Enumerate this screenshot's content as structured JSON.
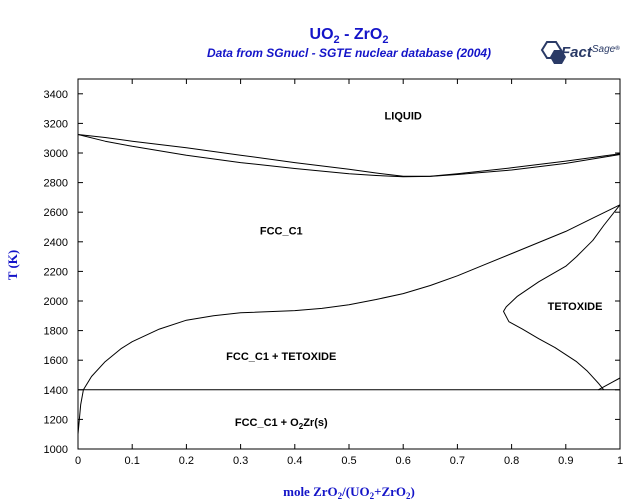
{
  "title": {
    "main": "UO",
    "main_sub1": "2",
    "main_mid": " - ZrO",
    "main_sub2": "2",
    "subtitle": "Data from SGnucl - SGTE nuclear database (2004)"
  },
  "logo": {
    "part1": "Fact",
    "part2": "Sage",
    "mark": "®"
  },
  "axes": {
    "ylabel": "T (K)",
    "xlabel_pre": "mole ZrO",
    "xlabel_s1": "2",
    "xlabel_mid": "/(UO",
    "xlabel_s2": "2",
    "xlabel_post": "+ZrO",
    "xlabel_s3": "2",
    "xlabel_end": ")"
  },
  "colors": {
    "accent": "#1414c8",
    "line": "#000000",
    "logo": "#2a3a66"
  },
  "chart_data": {
    "type": "line",
    "title": "UO2 - ZrO2",
    "subtitle": "Data from SGnucl - SGTE nuclear database (2004)",
    "xlabel": "mole ZrO2/(UO2+ZrO2)",
    "ylabel": "T (K)",
    "xlim": [
      0,
      1
    ],
    "ylim": [
      1000,
      3500
    ],
    "x_ticks": [
      0,
      0.1,
      0.2,
      0.3,
      0.4,
      0.5,
      0.6,
      0.7,
      0.8,
      0.9,
      1
    ],
    "x_tick_labels": [
      "0",
      "0.1",
      "0.2",
      "0.3",
      "0.4",
      "0.5",
      "0.6",
      "0.7",
      "0.8",
      "0.9",
      "1"
    ],
    "y_ticks": [
      1000,
      1200,
      1400,
      1600,
      1800,
      2000,
      2200,
      2400,
      2600,
      2800,
      3000,
      3200,
      3400
    ],
    "y_tick_labels": [
      "1000",
      "1200",
      "1400",
      "1600",
      "1800",
      "2000",
      "2200",
      "2400",
      "2600",
      "2800",
      "3000",
      "3200",
      "3400"
    ],
    "grid": false,
    "regions": [
      {
        "label": "LIQUID",
        "x": 0.6,
        "y": 3255
      },
      {
        "label": "FCC_C1",
        "x": 0.375,
        "y": 2475
      },
      {
        "label": "TETOXIDE",
        "x": 0.917,
        "y": 1965
      },
      {
        "label": "FCC_C1 + TETOXIDE",
        "x": 0.375,
        "y": 1630
      },
      {
        "label": "FCC_C1 + O",
        "sub": "2",
        "post": "Zr(s)",
        "x": 0.375,
        "y": 1183
      }
    ],
    "series": [
      {
        "values": [
          [
            0,
            3125
          ],
          [
            0.05,
            3105
          ],
          [
            0.1,
            3080
          ],
          [
            0.2,
            3035
          ],
          [
            0.3,
            2985
          ],
          [
            0.4,
            2935
          ],
          [
            0.5,
            2890
          ],
          [
            0.55,
            2865
          ],
          [
            0.6,
            2843
          ],
          [
            0.65,
            2843
          ],
          [
            0.7,
            2860
          ],
          [
            0.8,
            2900
          ],
          [
            0.9,
            2945
          ],
          [
            1,
            2995
          ]
        ]
      },
      {
        "values": [
          [
            0,
            3125
          ],
          [
            0.05,
            3080
          ],
          [
            0.1,
            3045
          ],
          [
            0.2,
            2985
          ],
          [
            0.3,
            2935
          ],
          [
            0.4,
            2895
          ],
          [
            0.5,
            2860
          ],
          [
            0.55,
            2848
          ],
          [
            0.6,
            2840
          ],
          [
            0.65,
            2842
          ],
          [
            0.7,
            2855
          ],
          [
            0.8,
            2885
          ],
          [
            0.9,
            2930
          ],
          [
            1,
            2990
          ]
        ]
      },
      {
        "values": [
          [
            0,
            1100
          ],
          [
            0.005,
            1300
          ],
          [
            0.01,
            1400
          ],
          [
            0.025,
            1490
          ],
          [
            0.05,
            1590
          ],
          [
            0.08,
            1680
          ],
          [
            0.1,
            1725
          ],
          [
            0.15,
            1810
          ],
          [
            0.2,
            1870
          ],
          [
            0.25,
            1900
          ],
          [
            0.3,
            1920
          ],
          [
            0.4,
            1935
          ],
          [
            0.45,
            1950
          ],
          [
            0.5,
            1975
          ],
          [
            0.55,
            2010
          ],
          [
            0.6,
            2050
          ],
          [
            0.65,
            2105
          ],
          [
            0.7,
            2170
          ],
          [
            0.75,
            2245
          ],
          [
            0.8,
            2320
          ],
          [
            0.85,
            2395
          ],
          [
            0.9,
            2470
          ],
          [
            0.95,
            2560
          ],
          [
            1,
            2650
          ]
        ]
      },
      {
        "values": [
          [
            1,
            2650
          ],
          [
            0.97,
            2510
          ],
          [
            0.95,
            2410
          ],
          [
            0.92,
            2300
          ],
          [
            0.9,
            2235
          ],
          [
            0.85,
            2130
          ],
          [
            0.81,
            2030
          ],
          [
            0.79,
            1960
          ],
          [
            0.785,
            1930
          ],
          [
            0.795,
            1860
          ],
          [
            0.82,
            1810
          ],
          [
            0.85,
            1745
          ],
          [
            0.88,
            1685
          ],
          [
            0.92,
            1590
          ],
          [
            0.94,
            1525
          ],
          [
            0.96,
            1445
          ],
          [
            0.97,
            1400
          ]
        ]
      },
      {
        "values": [
          [
            0,
            1400
          ],
          [
            1,
            1400
          ]
        ]
      },
      {
        "values": [
          [
            0.96,
            1400
          ],
          [
            1,
            1480
          ]
        ]
      }
    ]
  }
}
